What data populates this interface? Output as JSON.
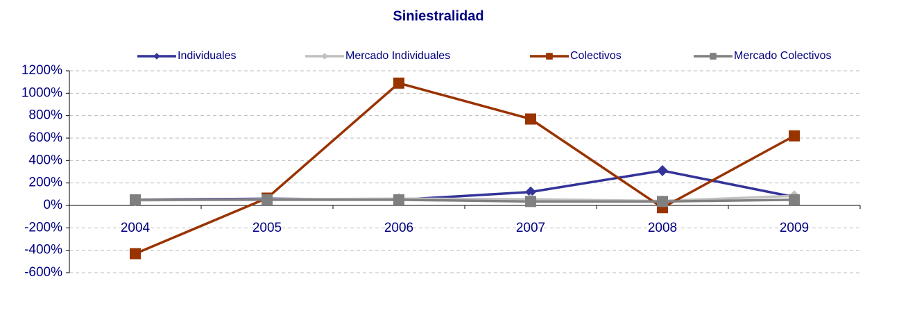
{
  "chart_data": {
    "type": "line",
    "title": "Siniestralidad",
    "categories": [
      "2004",
      "2005",
      "2006",
      "2007",
      "2008",
      "2009"
    ],
    "series": [
      {
        "name": "Individuales",
        "color": "#333399",
        "marker": "diamond",
        "values": [
          50,
          60,
          50,
          120,
          310,
          75
        ]
      },
      {
        "name": "Mercado Individuales",
        "color": "#c0c0c0",
        "marker": "diamond",
        "values": [
          45,
          55,
          60,
          55,
          40,
          85
        ]
      },
      {
        "name": "Colectivos",
        "color": "#993300",
        "marker": "square",
        "values": [
          -430,
          65,
          1090,
          770,
          -20,
          620
        ]
      },
      {
        "name": "Mercado Colectivos",
        "color": "#808080",
        "marker": "square",
        "values": [
          50,
          50,
          50,
          35,
          35,
          50
        ]
      }
    ],
    "ylim": [
      -600,
      1200
    ],
    "yticks": [
      {
        "value": -600,
        "label": "-600%"
      },
      {
        "value": -400,
        "label": "-400%"
      },
      {
        "value": -200,
        "label": "-200%"
      },
      {
        "value": 0,
        "label": "0%"
      },
      {
        "value": 200,
        "label": "200%"
      },
      {
        "value": 400,
        "label": "400%"
      },
      {
        "value": 600,
        "label": "600%"
      },
      {
        "value": 800,
        "label": "800%"
      },
      {
        "value": 1000,
        "label": "1000%"
      },
      {
        "value": 1200,
        "label": "1200%"
      }
    ],
    "grid": true,
    "legend": "top"
  }
}
